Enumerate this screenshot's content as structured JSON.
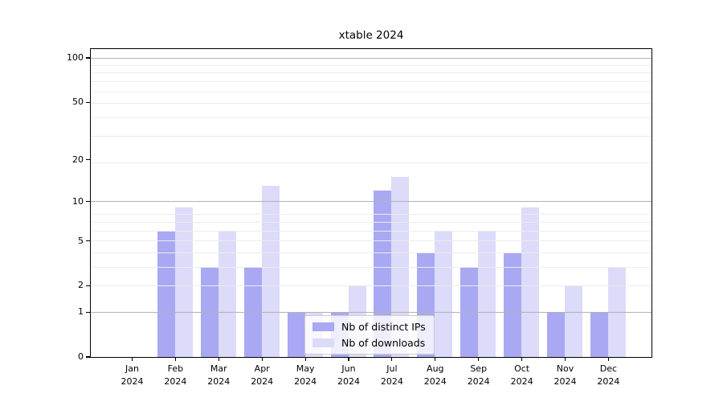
{
  "chart_data": {
    "type": "bar",
    "title": "xtable 2024",
    "categories": [
      "Jan 2024",
      "Feb 2024",
      "Mar 2024",
      "Apr 2024",
      "May 2024",
      "Jun 2024",
      "Jul 2024",
      "Aug 2024",
      "Sep 2024",
      "Oct 2024",
      "Nov 2024",
      "Dec 2024"
    ],
    "series": [
      {
        "name": "Nb of distinct IPs",
        "color": "#a9a8f3",
        "values": [
          0,
          6,
          3,
          3,
          1,
          1,
          12,
          4,
          3,
          4,
          1,
          1
        ]
      },
      {
        "name": "Nb of downloads",
        "color": "#dcdbf9",
        "values": [
          0,
          9,
          6,
          13,
          1,
          2,
          15,
          6,
          6,
          9,
          2,
          3
        ]
      }
    ],
    "xlabel": "",
    "ylabel": "",
    "y_ticks": [
      0,
      1,
      2,
      5,
      10,
      20,
      50,
      100
    ],
    "y_scale": "log10(1+y)",
    "ylim": [
      0,
      113
    ],
    "grid": true,
    "grid_major_at": [
      1,
      10,
      100
    ],
    "grid_minor_at": [
      2,
      3,
      4,
      5,
      6,
      7,
      8,
      19,
      29,
      39,
      49,
      59,
      69,
      79,
      89,
      99
    ],
    "legend_position": "lower center",
    "colors": {
      "distinct_ips_bar": "#a9a8f3",
      "downloads_bar": "#dcdbf9",
      "grid_major": "#b3b3b3",
      "grid_minor": "#ececec",
      "axis": "#000000"
    }
  }
}
